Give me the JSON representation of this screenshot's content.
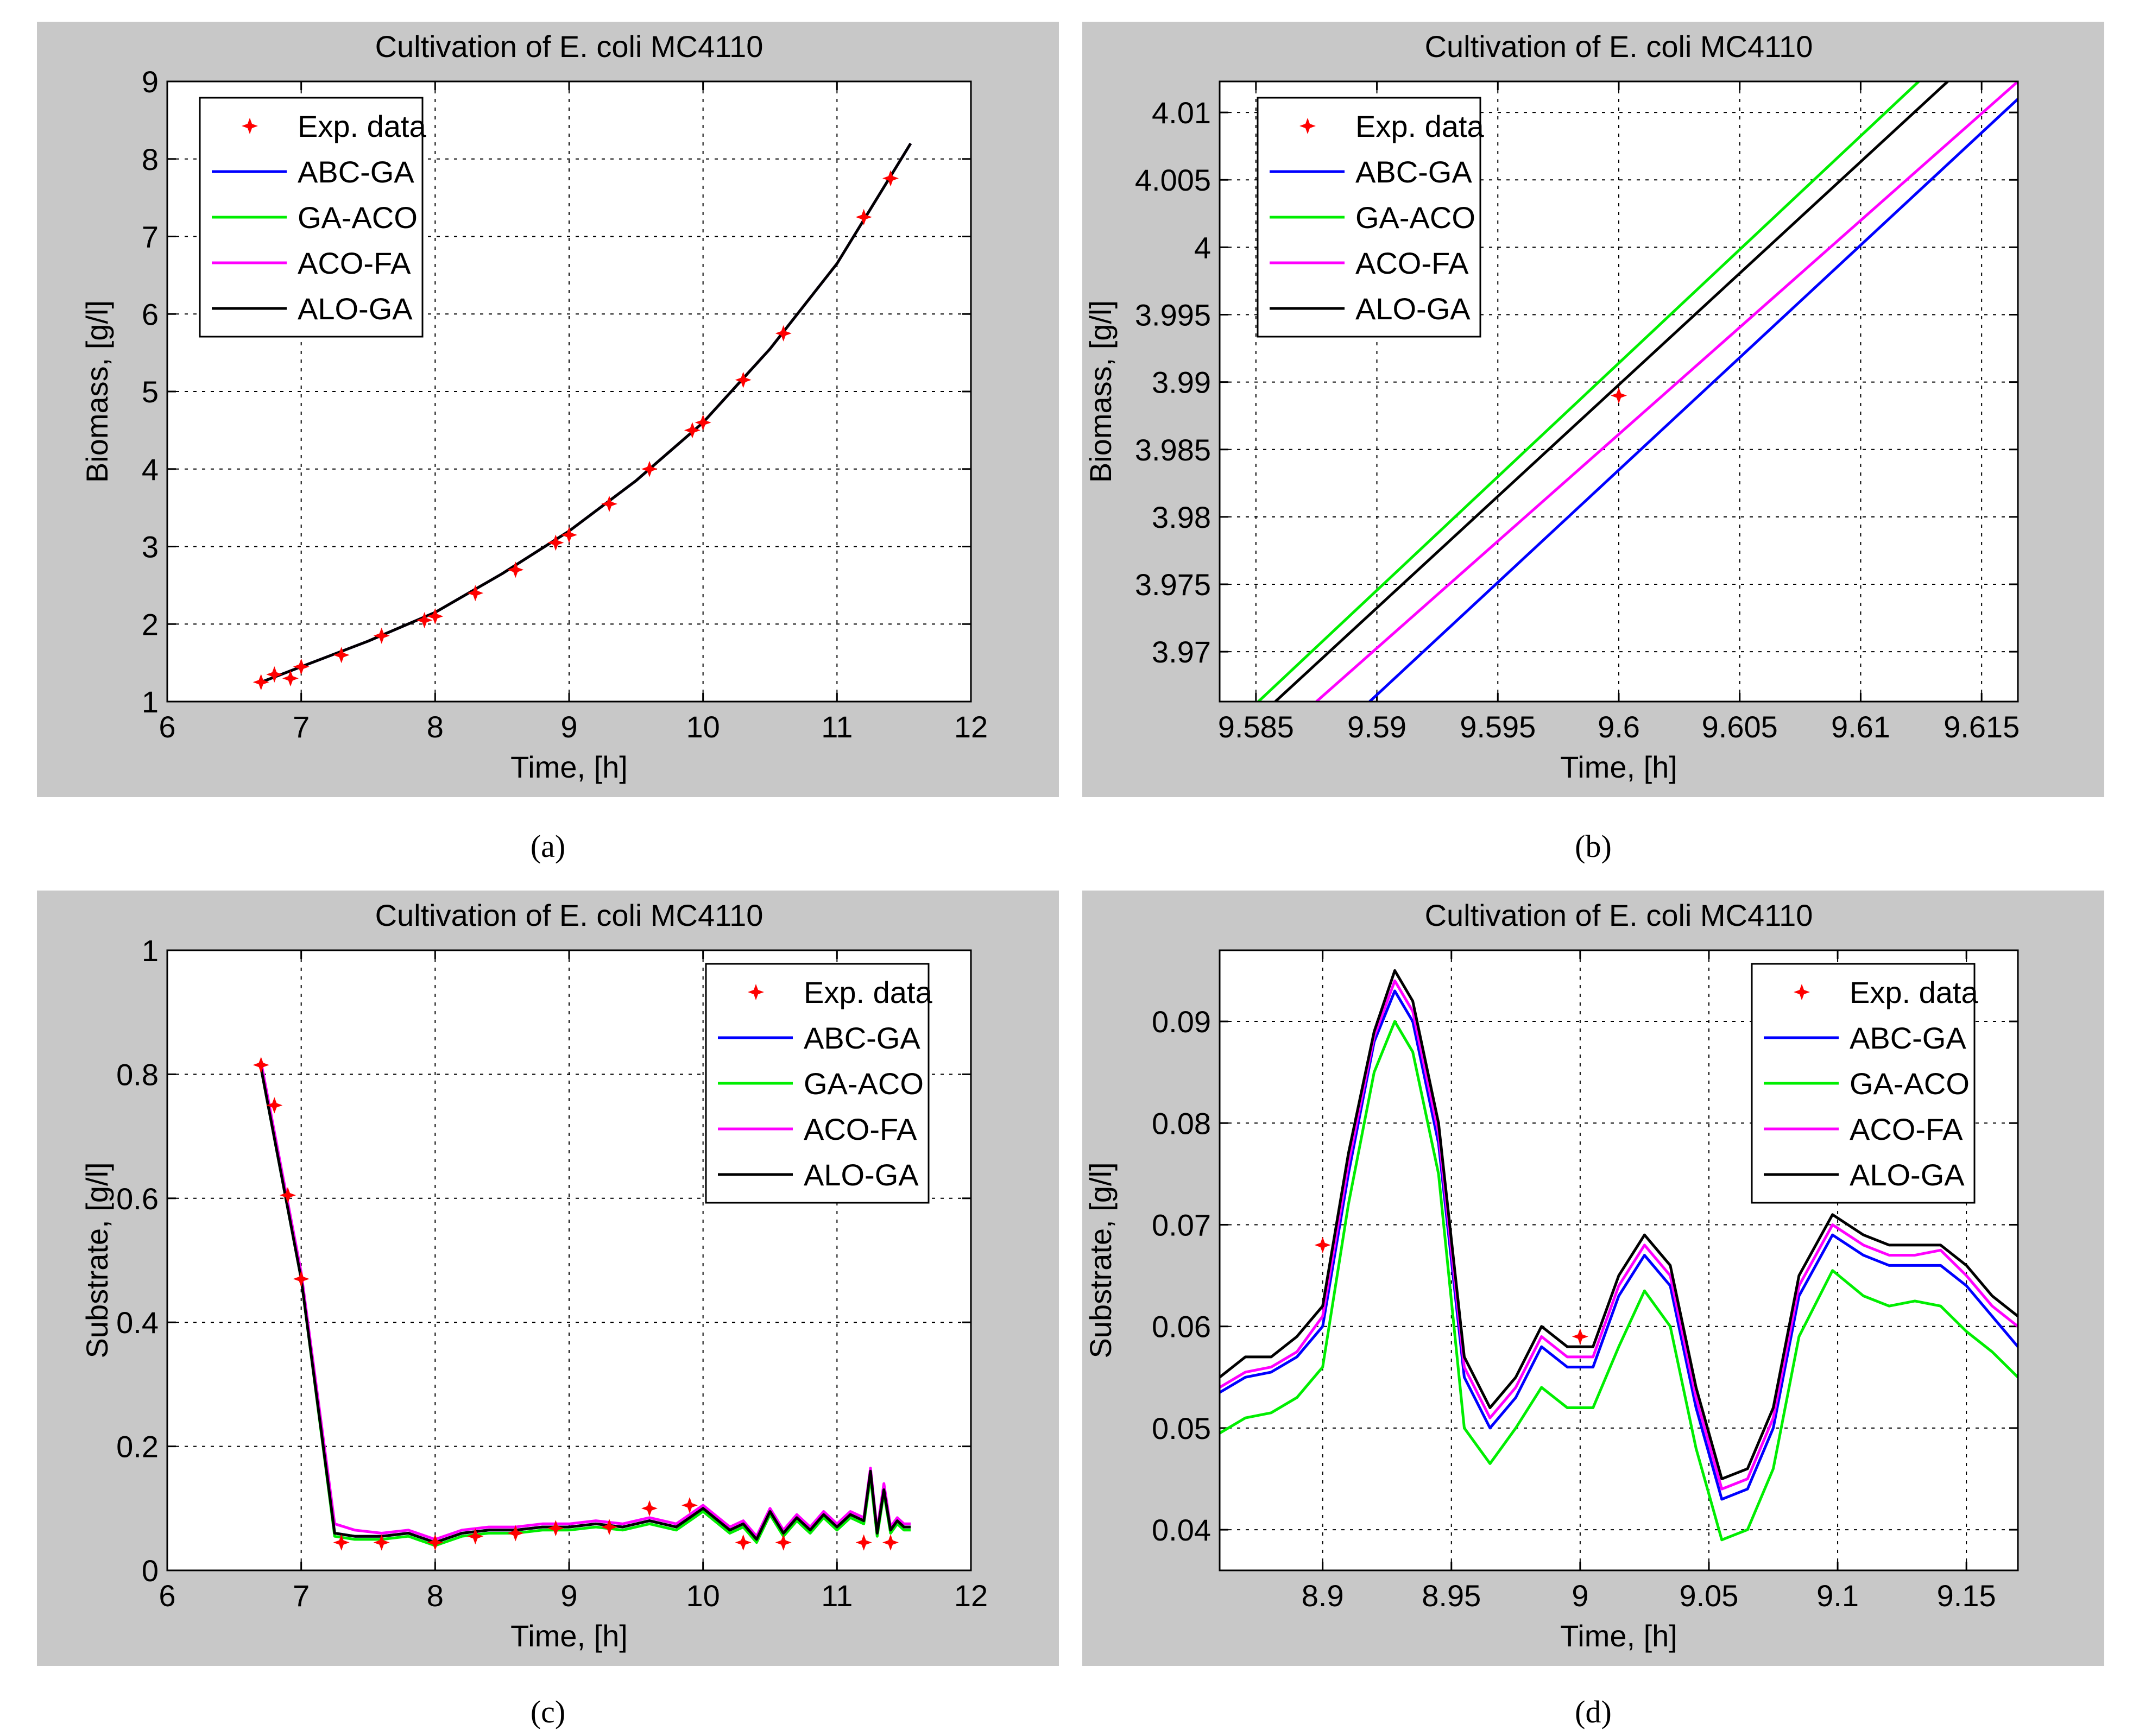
{
  "figure": {
    "panel_labels": [
      "(a)",
      "(b)",
      "(c)",
      "(d)"
    ]
  },
  "colors": {
    "frame_bg": "#c8c8c8",
    "axes_bg": "#ffffff",
    "exp_data": "#ff0000",
    "ABC-GA": "#0000ff",
    "GA-ACO": "#00ee00",
    "ACO-FA": "#ff00ff",
    "ALO-GA": "#000000"
  },
  "chart_data": [
    {
      "id": "a",
      "type": "line",
      "title": "Cultivation of E. coli MC4110",
      "xlabel": "Time, [h]",
      "ylabel": "Biomass, [g/l]",
      "xlim": [
        6,
        12
      ],
      "ylim": [
        1,
        9
      ],
      "xticks": [
        6,
        7,
        8,
        9,
        10,
        11,
        12
      ],
      "xtick_labels": [
        "6",
        "7",
        "8",
        "9",
        "10",
        "11",
        "12"
      ],
      "yticks": [
        1,
        2,
        3,
        4,
        5,
        6,
        7,
        8,
        9
      ],
      "ytick_labels": [
        "1",
        "2",
        "3",
        "4",
        "5",
        "6",
        "7",
        "8",
        "9"
      ],
      "grid": true,
      "legend": {
        "position": "top-left",
        "entries": [
          "Exp. data",
          "ABC-GA",
          "GA-ACO",
          "ACO-FA",
          "ALO-GA"
        ]
      },
      "exp_data": {
        "name": "Exp. data",
        "x": [
          6.7,
          6.8,
          6.92,
          7.0,
          7.3,
          7.6,
          7.92,
          8.0,
          8.3,
          8.6,
          8.9,
          9.0,
          9.3,
          9.6,
          9.92,
          10.0,
          10.3,
          10.6,
          11.2,
          11.4
        ],
        "y": [
          1.25,
          1.35,
          1.3,
          1.45,
          1.6,
          1.85,
          2.05,
          2.1,
          2.4,
          2.7,
          3.05,
          3.15,
          3.55,
          4.0,
          4.5,
          4.6,
          5.15,
          5.75,
          7.25,
          7.75
        ]
      },
      "series": [
        {
          "name": "ABC-GA",
          "x": [
            6.7,
            7.0,
            7.5,
            8.0,
            8.5,
            9.0,
            9.5,
            10.0,
            10.5,
            11.0,
            11.55
          ],
          "y": [
            1.25,
            1.45,
            1.78,
            2.15,
            2.65,
            3.2,
            3.85,
            4.6,
            5.55,
            6.65,
            8.2
          ]
        },
        {
          "name": "GA-ACO",
          "x": [
            6.7,
            7.0,
            7.5,
            8.0,
            8.5,
            9.0,
            9.5,
            10.0,
            10.5,
            11.0,
            11.55
          ],
          "y": [
            1.25,
            1.45,
            1.78,
            2.15,
            2.65,
            3.2,
            3.85,
            4.6,
            5.55,
            6.65,
            8.2
          ]
        },
        {
          "name": "ACO-FA",
          "x": [
            6.7,
            7.0,
            7.5,
            8.0,
            8.5,
            9.0,
            9.5,
            10.0,
            10.5,
            11.0,
            11.55
          ],
          "y": [
            1.25,
            1.45,
            1.78,
            2.15,
            2.65,
            3.2,
            3.85,
            4.6,
            5.55,
            6.65,
            8.2
          ]
        },
        {
          "name": "ALO-GA",
          "x": [
            6.7,
            7.0,
            7.5,
            8.0,
            8.5,
            9.0,
            9.5,
            10.0,
            10.5,
            11.0,
            11.55
          ],
          "y": [
            1.25,
            1.45,
            1.78,
            2.15,
            2.65,
            3.2,
            3.85,
            4.6,
            5.55,
            6.65,
            8.2
          ]
        }
      ]
    },
    {
      "id": "b",
      "type": "line",
      "title": "Cultivation of E. coli MC4110",
      "xlabel": "Time, [h]",
      "ylabel": "Biomass, [g/l]",
      "xlim": [
        9.5835,
        9.6165
      ],
      "ylim": [
        3.9663,
        4.0123
      ],
      "xticks": [
        9.585,
        9.59,
        9.595,
        9.6,
        9.605,
        9.61,
        9.615
      ],
      "xtick_labels": [
        "9.585",
        "9.59",
        "9.595",
        "9.6",
        "9.605",
        "9.61",
        "9.615"
      ],
      "yticks": [
        3.97,
        3.975,
        3.98,
        3.985,
        3.99,
        3.995,
        4.0,
        4.005,
        4.01
      ],
      "ytick_labels": [
        "3.97",
        "3.975",
        "3.98",
        "3.985",
        "3.99",
        "3.995",
        "4",
        "4.005",
        "4.01"
      ],
      "grid": true,
      "legend": {
        "position": "top-left",
        "entries": [
          "Exp. data",
          "ABC-GA",
          "GA-ACO",
          "ACO-FA",
          "ALO-GA"
        ]
      },
      "exp_data": {
        "name": "Exp. data",
        "x": [
          9.6
        ],
        "y": [
          3.989
        ]
      },
      "series": [
        {
          "name": "ABC-GA",
          "x": [
            9.5897,
            9.6165
          ],
          "y": [
            3.9663,
            4.011
          ]
        },
        {
          "name": "GA-ACO",
          "x": [
            9.5851,
            9.6124
          ],
          "y": [
            3.9663,
            4.0123
          ]
        },
        {
          "name": "ACO-FA",
          "x": [
            9.5875,
            9.6165
          ],
          "y": [
            3.9663,
            4.0123
          ]
        },
        {
          "name": "ALO-GA",
          "x": [
            9.5858,
            9.6136
          ],
          "y": [
            3.9663,
            4.0123
          ]
        }
      ]
    },
    {
      "id": "c",
      "type": "line",
      "title": "Cultivation of E. coli MC4110",
      "xlabel": "Time, [h]",
      "ylabel": "Substrate, [g/l]",
      "xlim": [
        6,
        12
      ],
      "ylim": [
        0,
        1
      ],
      "xticks": [
        6,
        7,
        8,
        9,
        10,
        11,
        12
      ],
      "xtick_labels": [
        "6",
        "7",
        "8",
        "9",
        "10",
        "11",
        "12"
      ],
      "yticks": [
        0,
        0.2,
        0.4,
        0.6,
        0.8,
        1.0
      ],
      "ytick_labels": [
        "0",
        "0.2",
        "0.4",
        "0.6",
        "0.8",
        "1"
      ],
      "grid": true,
      "legend": {
        "position": "top-right",
        "entries": [
          "Exp. data",
          "ABC-GA",
          "GA-ACO",
          "ACO-FA",
          "ALO-GA"
        ]
      },
      "exp_data": {
        "name": "Exp. data",
        "x": [
          6.7,
          6.8,
          6.9,
          7.0,
          7.3,
          7.6,
          8.0,
          8.3,
          8.6,
          8.9,
          9.3,
          9.6,
          9.9,
          10.3,
          10.6,
          11.2,
          11.4
        ],
        "y": [
          0.815,
          0.75,
          0.605,
          0.47,
          0.045,
          0.045,
          0.045,
          0.055,
          0.06,
          0.068,
          0.07,
          0.1,
          0.105,
          0.045,
          0.045,
          0.045,
          0.045
        ]
      },
      "series": [
        {
          "name": "ABC-GA",
          "x": [
            6.7,
            7.0,
            7.25,
            7.4,
            7.6,
            7.8,
            8.0,
            8.2,
            8.4,
            8.6,
            8.8,
            9.0,
            9.2,
            9.4,
            9.6,
            9.8,
            10.0,
            10.2,
            10.3,
            10.4,
            10.5,
            10.6,
            10.7,
            10.8,
            10.9,
            11.0,
            11.1,
            11.2,
            11.25,
            11.3,
            11.35,
            11.4,
            11.45,
            11.5,
            11.55
          ],
          "y": [
            0.81,
            0.47,
            0.06,
            0.055,
            0.055,
            0.06,
            0.045,
            0.06,
            0.065,
            0.065,
            0.07,
            0.07,
            0.075,
            0.07,
            0.08,
            0.07,
            0.1,
            0.065,
            0.075,
            0.05,
            0.095,
            0.06,
            0.085,
            0.065,
            0.09,
            0.07,
            0.09,
            0.08,
            0.16,
            0.06,
            0.13,
            0.065,
            0.08,
            0.07,
            0.07
          ]
        },
        {
          "name": "GA-ACO",
          "x": [
            6.7,
            7.0,
            7.25,
            7.4,
            7.6,
            7.8,
            8.0,
            8.2,
            8.4,
            8.6,
            8.8,
            9.0,
            9.2,
            9.4,
            9.6,
            9.8,
            10.0,
            10.2,
            10.3,
            10.4,
            10.5,
            10.6,
            10.7,
            10.8,
            10.9,
            11.0,
            11.1,
            11.2,
            11.25,
            11.3,
            11.35,
            11.4,
            11.45,
            11.5,
            11.55
          ],
          "y": [
            0.81,
            0.47,
            0.055,
            0.05,
            0.05,
            0.055,
            0.04,
            0.055,
            0.06,
            0.06,
            0.065,
            0.065,
            0.07,
            0.065,
            0.075,
            0.065,
            0.095,
            0.06,
            0.07,
            0.045,
            0.09,
            0.055,
            0.08,
            0.06,
            0.085,
            0.065,
            0.085,
            0.075,
            0.15,
            0.055,
            0.125,
            0.06,
            0.075,
            0.065,
            0.065
          ]
        },
        {
          "name": "ACO-FA",
          "x": [
            6.7,
            7.0,
            7.25,
            7.4,
            7.6,
            7.8,
            8.0,
            8.2,
            8.4,
            8.6,
            8.8,
            9.0,
            9.2,
            9.4,
            9.6,
            9.8,
            10.0,
            10.2,
            10.3,
            10.4,
            10.5,
            10.6,
            10.7,
            10.8,
            10.9,
            11.0,
            11.1,
            11.2,
            11.25,
            11.3,
            11.35,
            11.4,
            11.45,
            11.5,
            11.55
          ],
          "y": [
            0.82,
            0.48,
            0.075,
            0.065,
            0.06,
            0.065,
            0.05,
            0.065,
            0.07,
            0.07,
            0.075,
            0.075,
            0.08,
            0.075,
            0.085,
            0.075,
            0.105,
            0.07,
            0.08,
            0.055,
            0.1,
            0.065,
            0.09,
            0.07,
            0.095,
            0.075,
            0.095,
            0.085,
            0.165,
            0.065,
            0.14,
            0.07,
            0.085,
            0.075,
            0.075
          ]
        },
        {
          "name": "ALO-GA",
          "x": [
            6.7,
            7.0,
            7.25,
            7.4,
            7.6,
            7.8,
            8.0,
            8.2,
            8.4,
            8.6,
            8.8,
            9.0,
            9.2,
            9.4,
            9.6,
            9.8,
            10.0,
            10.2,
            10.3,
            10.4,
            10.5,
            10.6,
            10.7,
            10.8,
            10.9,
            11.0,
            11.1,
            11.2,
            11.25,
            11.3,
            11.35,
            11.4,
            11.45,
            11.5,
            11.55
          ],
          "y": [
            0.81,
            0.47,
            0.06,
            0.055,
            0.055,
            0.06,
            0.045,
            0.06,
            0.065,
            0.065,
            0.07,
            0.07,
            0.075,
            0.07,
            0.08,
            0.07,
            0.1,
            0.065,
            0.075,
            0.05,
            0.095,
            0.06,
            0.085,
            0.065,
            0.09,
            0.07,
            0.09,
            0.08,
            0.16,
            0.06,
            0.13,
            0.065,
            0.08,
            0.07,
            0.07
          ]
        }
      ]
    },
    {
      "id": "d",
      "type": "line",
      "title": "Cultivation of E. coli MC4110",
      "xlabel": "Time, [h]",
      "ylabel": "Substrate, [g/l]",
      "xlim": [
        8.86,
        9.17
      ],
      "ylim": [
        0.036,
        0.097
      ],
      "xticks": [
        8.9,
        8.95,
        9.0,
        9.05,
        9.1,
        9.15
      ],
      "xtick_labels": [
        "8.9",
        "8.95",
        "9",
        "9.05",
        "9.1",
        "9.15"
      ],
      "yticks": [
        0.04,
        0.05,
        0.06,
        0.07,
        0.08,
        0.09
      ],
      "ytick_labels": [
        "0.04",
        "0.05",
        "0.06",
        "0.07",
        "0.08",
        "0.09"
      ],
      "grid": true,
      "legend": {
        "position": "top-right",
        "entries": [
          "Exp. data",
          "ABC-GA",
          "GA-ACO",
          "ACO-FA",
          "ALO-GA"
        ]
      },
      "exp_data": {
        "name": "Exp. data",
        "x": [
          8.9,
          9.0
        ],
        "y": [
          0.068,
          0.059
        ]
      },
      "series": [
        {
          "name": "ABC-GA",
          "x": [
            8.86,
            8.87,
            8.88,
            8.89,
            8.9,
            8.91,
            8.92,
            8.928,
            8.935,
            8.945,
            8.955,
            8.965,
            8.975,
            8.985,
            8.995,
            9.005,
            9.015,
            9.025,
            9.035,
            9.045,
            9.055,
            9.065,
            9.075,
            9.085,
            9.098,
            9.11,
            9.12,
            9.13,
            9.14,
            9.15,
            9.16,
            9.17
          ],
          "y": [
            0.0535,
            0.055,
            0.0555,
            0.057,
            0.06,
            0.075,
            0.088,
            0.093,
            0.09,
            0.078,
            0.055,
            0.05,
            0.053,
            0.058,
            0.056,
            0.056,
            0.063,
            0.067,
            0.064,
            0.052,
            0.043,
            0.044,
            0.05,
            0.063,
            0.069,
            0.067,
            0.066,
            0.066,
            0.066,
            0.064,
            0.061,
            0.058
          ]
        },
        {
          "name": "GA-ACO",
          "x": [
            8.86,
            8.87,
            8.88,
            8.89,
            8.9,
            8.91,
            8.92,
            8.928,
            8.935,
            8.945,
            8.955,
            8.965,
            8.975,
            8.985,
            8.995,
            9.005,
            9.015,
            9.025,
            9.035,
            9.045,
            9.055,
            9.065,
            9.075,
            9.085,
            9.098,
            9.11,
            9.12,
            9.13,
            9.14,
            9.15,
            9.16,
            9.17
          ],
          "y": [
            0.0495,
            0.051,
            0.0515,
            0.053,
            0.056,
            0.072,
            0.085,
            0.09,
            0.087,
            0.075,
            0.05,
            0.0465,
            0.05,
            0.054,
            0.052,
            0.052,
            0.058,
            0.0635,
            0.06,
            0.048,
            0.039,
            0.04,
            0.046,
            0.059,
            0.0655,
            0.063,
            0.062,
            0.0625,
            0.062,
            0.0595,
            0.0575,
            0.055
          ]
        },
        {
          "name": "ACO-FA",
          "x": [
            8.86,
            8.87,
            8.88,
            8.89,
            8.9,
            8.91,
            8.92,
            8.928,
            8.935,
            8.945,
            8.955,
            8.965,
            8.975,
            8.985,
            8.995,
            9.005,
            9.015,
            9.025,
            9.035,
            9.045,
            9.055,
            9.065,
            9.075,
            9.085,
            9.098,
            9.11,
            9.12,
            9.13,
            9.14,
            9.15,
            9.16,
            9.17
          ],
          "y": [
            0.054,
            0.0555,
            0.056,
            0.0575,
            0.061,
            0.076,
            0.0885,
            0.094,
            0.091,
            0.079,
            0.056,
            0.051,
            0.054,
            0.059,
            0.057,
            0.057,
            0.064,
            0.068,
            0.065,
            0.053,
            0.044,
            0.045,
            0.051,
            0.064,
            0.07,
            0.068,
            0.067,
            0.067,
            0.0675,
            0.065,
            0.062,
            0.06
          ]
        },
        {
          "name": "ALO-GA",
          "x": [
            8.86,
            8.87,
            8.88,
            8.89,
            8.9,
            8.91,
            8.92,
            8.928,
            8.935,
            8.945,
            8.955,
            8.965,
            8.975,
            8.985,
            8.995,
            9.005,
            9.015,
            9.025,
            9.035,
            9.045,
            9.055,
            9.065,
            9.075,
            9.085,
            9.098,
            9.11,
            9.12,
            9.13,
            9.14,
            9.15,
            9.16,
            9.17
          ],
          "y": [
            0.055,
            0.057,
            0.057,
            0.059,
            0.062,
            0.077,
            0.089,
            0.095,
            0.092,
            0.08,
            0.057,
            0.052,
            0.055,
            0.06,
            0.058,
            0.058,
            0.065,
            0.069,
            0.066,
            0.054,
            0.045,
            0.046,
            0.052,
            0.065,
            0.071,
            0.069,
            0.068,
            0.068,
            0.068,
            0.066,
            0.063,
            0.061
          ]
        }
      ]
    }
  ]
}
